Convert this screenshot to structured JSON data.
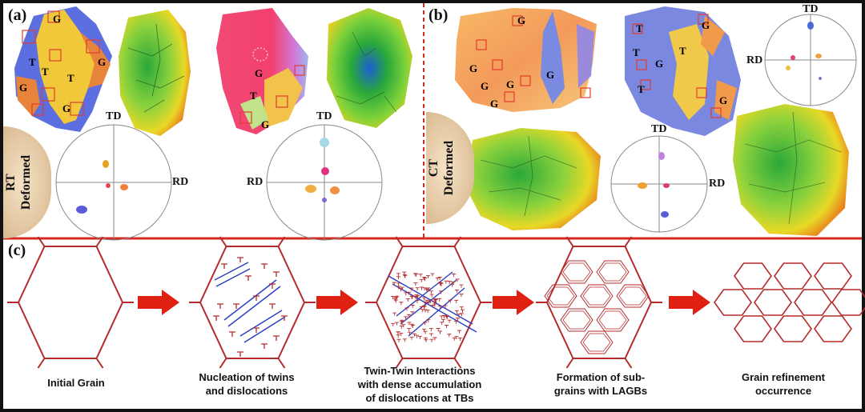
{
  "panels": {
    "a": {
      "label": "(a)",
      "condition": "RT\nDeformed",
      "map_labels": [
        "G",
        "G",
        "G",
        "G",
        "T",
        "T",
        "T",
        "G",
        "T",
        "G"
      ],
      "pole1": {
        "td": "TD",
        "rd": "RD"
      },
      "pole2": {
        "td": "TD",
        "rd": "RD"
      }
    },
    "b": {
      "label": "(b)",
      "condition": "CT\nDeformed",
      "map_labels": [
        "G",
        "G",
        "G",
        "G",
        "G",
        "G",
        "T",
        "T",
        "T",
        "T",
        "G",
        "G",
        "G"
      ],
      "pole1": {
        "td": "TD",
        "rd": "RD"
      },
      "pole2": {
        "td": "TD",
        "rd": "RD"
      }
    },
    "c": {
      "label": "(c)"
    }
  },
  "steps": [
    {
      "caption": "Initial Grain"
    },
    {
      "caption": "Nucleation of twins\nand dislocations"
    },
    {
      "caption": "Twin-Twin Interactions\nwith dense accumulation\nof dislocations at TBs"
    },
    {
      "caption": "Formation of sub-\ngrains with LAGBs"
    },
    {
      "caption": "Grain refinement\noccurrence"
    }
  ],
  "colors": {
    "divider": "#d42a20",
    "grain_boundary": "#b52a2a",
    "twin": "#2b3fc4",
    "arrow": "#e02010",
    "frame": "#111111"
  }
}
